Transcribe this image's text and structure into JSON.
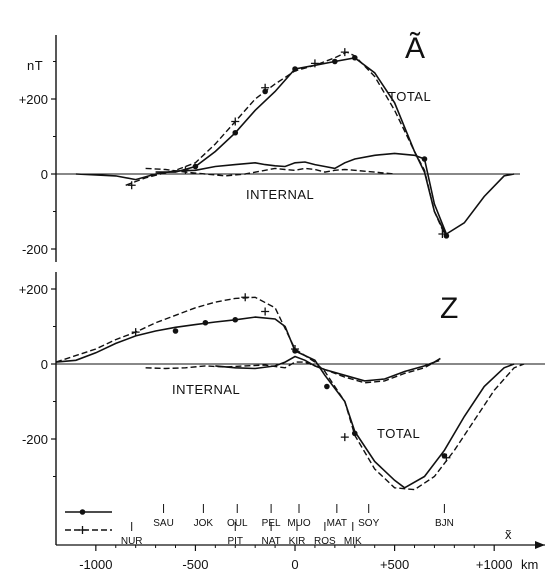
{
  "chart_data": [
    {
      "type": "line",
      "panel_label": "Ã",
      "ylabel": "nT",
      "yticks": [
        "+200",
        "0",
        "-200"
      ],
      "ytick_values": [
        200,
        0,
        -200
      ],
      "ylim": [
        -220,
        360
      ],
      "xlim": [
        -1200,
        1230
      ],
      "annotations": [
        "TOTAL",
        "INTERNAL"
      ],
      "series": [
        {
          "style": "solid-dots",
          "line": "solid",
          "marker": "dot",
          "points": [
            [
              -700,
              5
            ],
            [
              -600,
              5
            ],
            [
              -500,
              20
            ],
            [
              -400,
              60
            ],
            [
              -300,
              110
            ],
            [
              -200,
              170
            ],
            [
              -100,
              220
            ],
            [
              0,
              280
            ],
            [
              100,
              290
            ],
            [
              200,
              300
            ],
            [
              300,
              310
            ],
            [
              400,
              270
            ],
            [
              500,
              190
            ],
            [
              600,
              60
            ],
            [
              650,
              5
            ],
            [
              700,
              -100
            ],
            [
              760,
              -165
            ]
          ],
          "markers": [
            [
              -500,
              20
            ],
            [
              -300,
              110
            ],
            [
              -150,
              220
            ],
            [
              0,
              280
            ],
            [
              200,
              300
            ],
            [
              300,
              310
            ],
            [
              650,
              40
            ],
            [
              760,
              -165
            ]
          ]
        },
        {
          "style": "dashed-cross",
          "line": "dashed",
          "marker": "plus",
          "points": [
            [
              -850,
              -30
            ],
            [
              -750,
              -10
            ],
            [
              -600,
              10
            ],
            [
              -500,
              30
            ],
            [
              -400,
              80
            ],
            [
              -300,
              140
            ],
            [
              -200,
              200
            ],
            [
              -100,
              240
            ],
            [
              0,
              275
            ],
            [
              100,
              290
            ],
            [
              200,
              310
            ],
            [
              260,
              325
            ],
            [
              300,
              315
            ],
            [
              400,
              260
            ],
            [
              500,
              170
            ],
            [
              600,
              60
            ],
            [
              650,
              10
            ],
            [
              700,
              -100
            ],
            [
              750,
              -160
            ]
          ],
          "markers": [
            [
              -820,
              -30
            ],
            [
              -550,
              10
            ],
            [
              -300,
              140
            ],
            [
              -150,
              230
            ],
            [
              100,
              295
            ],
            [
              250,
              325
            ],
            [
              740,
              -160
            ]
          ]
        },
        {
          "style": "solid-dots",
          "line": "solid",
          "marker": "none",
          "points": [
            [
              -1100,
              0
            ],
            [
              -900,
              -5
            ],
            [
              -800,
              -15
            ],
            [
              -700,
              0
            ],
            [
              -600,
              8
            ],
            [
              -500,
              10
            ],
            [
              -400,
              20
            ],
            [
              -300,
              25
            ],
            [
              -200,
              30
            ],
            [
              -150,
              25
            ],
            [
              -100,
              22
            ],
            [
              -50,
              20
            ],
            [
              0,
              30
            ],
            [
              50,
              32
            ],
            [
              100,
              25
            ],
            [
              150,
              20
            ],
            [
              200,
              15
            ],
            [
              250,
              30
            ],
            [
              300,
              40
            ],
            [
              400,
              50
            ],
            [
              500,
              55
            ],
            [
              600,
              50
            ],
            [
              650,
              40
            ],
            [
              700,
              -80
            ],
            [
              760,
              -160
            ],
            [
              850,
              -130
            ],
            [
              950,
              -60
            ],
            [
              1050,
              -5
            ],
            [
              1100,
              0
            ]
          ]
        },
        {
          "style": "dashed-cross",
          "line": "dashed",
          "marker": "none",
          "points": [
            [
              -750,
              15
            ],
            [
              -650,
              12
            ],
            [
              -550,
              5
            ],
            [
              -450,
              0
            ],
            [
              -350,
              -5
            ],
            [
              -250,
              0
            ],
            [
              -150,
              10
            ],
            [
              -100,
              15
            ],
            [
              -50,
              12
            ],
            [
              0,
              10
            ],
            [
              50,
              15
            ],
            [
              100,
              12
            ],
            [
              150,
              5
            ],
            [
              200,
              10
            ],
            [
              250,
              12
            ],
            [
              300,
              10
            ],
            [
              400,
              5
            ],
            [
              500,
              0
            ]
          ]
        }
      ]
    },
    {
      "type": "line",
      "panel_label": "Z",
      "ylabel": "",
      "yticks": [
        "+200",
        "0",
        "-200"
      ],
      "ytick_values": [
        200,
        0,
        -200
      ],
      "ylim": [
        -370,
        240
      ],
      "xlim": [
        -1200,
        1230
      ],
      "xticks": [
        "-1000",
        "-500",
        "0",
        "+500",
        "+1000"
      ],
      "xtick_values": [
        -1000,
        -500,
        0,
        500,
        1000
      ],
      "xunit": "km",
      "xaxis_symbol": "x̃",
      "annotations": [
        "INTERNAL",
        "TOTAL"
      ],
      "series": [
        {
          "style": "solid-dots",
          "line": "solid",
          "marker": "dot",
          "points": [
            [
              -1200,
              5
            ],
            [
              -1100,
              10
            ],
            [
              -1000,
              30
            ],
            [
              -900,
              55
            ],
            [
              -800,
              75
            ],
            [
              -700,
              88
            ],
            [
              -600,
              98
            ],
            [
              -500,
              105
            ],
            [
              -400,
              112
            ],
            [
              -300,
              118
            ],
            [
              -200,
              125
            ],
            [
              -100,
              120
            ],
            [
              -50,
              100
            ],
            [
              0,
              35
            ],
            [
              100,
              10
            ],
            [
              150,
              -30
            ],
            [
              250,
              -100
            ],
            [
              300,
              -180
            ],
            [
              400,
              -260
            ],
            [
              500,
              -310
            ],
            [
              550,
              -330
            ],
            [
              650,
              -300
            ],
            [
              750,
              -230
            ],
            [
              850,
              -140
            ],
            [
              950,
              -60
            ],
            [
              1050,
              -10
            ],
            [
              1100,
              0
            ]
          ],
          "markers": [
            [
              -600,
              88
            ],
            [
              -450,
              110
            ],
            [
              -300,
              118
            ],
            [
              0,
              35
            ],
            [
              160,
              -60
            ],
            [
              300,
              -185
            ],
            [
              750,
              -245
            ]
          ]
        },
        {
          "style": "dashed-cross",
          "line": "dashed",
          "marker": "plus",
          "points": [
            [
              -1200,
              5
            ],
            [
              -1000,
              40
            ],
            [
              -900,
              65
            ],
            [
              -800,
              85
            ],
            [
              -700,
              110
            ],
            [
              -600,
              130
            ],
            [
              -500,
              150
            ],
            [
              -400,
              165
            ],
            [
              -300,
              175
            ],
            [
              -200,
              178
            ],
            [
              -100,
              150
            ],
            [
              0,
              40
            ],
            [
              100,
              5
            ],
            [
              150,
              -20
            ],
            [
              250,
              -100
            ],
            [
              300,
              -190
            ],
            [
              400,
              -280
            ],
            [
              500,
              -330
            ],
            [
              600,
              -335
            ],
            [
              700,
              -300
            ],
            [
              800,
              -230
            ],
            [
              900,
              -150
            ],
            [
              1000,
              -70
            ],
            [
              1100,
              -10
            ],
            [
              1150,
              0
            ]
          ],
          "markers": [
            [
              -800,
              85
            ],
            [
              -250,
              178
            ],
            [
              -150,
              140
            ],
            [
              0,
              40
            ],
            [
              250,
              -195
            ],
            [
              760,
              -250
            ]
          ]
        },
        {
          "style": "solid-dots",
          "line": "solid",
          "marker": "none",
          "points": [
            [
              -400,
              -5
            ],
            [
              -300,
              -10
            ],
            [
              -200,
              -12
            ],
            [
              -100,
              -5
            ],
            [
              -50,
              5
            ],
            [
              0,
              20
            ],
            [
              50,
              10
            ],
            [
              100,
              -5
            ],
            [
              150,
              -15
            ],
            [
              250,
              -30
            ],
            [
              350,
              -45
            ],
            [
              450,
              -40
            ],
            [
              550,
              -20
            ],
            [
              650,
              -5
            ],
            [
              700,
              5
            ],
            [
              730,
              15
            ]
          ]
        },
        {
          "style": "dashed-cross",
          "line": "dashed",
          "marker": "none",
          "points": [
            [
              -750,
              -10
            ],
            [
              -650,
              -12
            ],
            [
              -550,
              -10
            ],
            [
              -450,
              -5
            ],
            [
              -350,
              -8
            ],
            [
              -250,
              -5
            ],
            [
              -150,
              -3
            ],
            [
              -50,
              -10
            ],
            [
              0,
              5
            ],
            [
              50,
              5
            ],
            [
              100,
              -5
            ],
            [
              150,
              -15
            ],
            [
              250,
              -35
            ],
            [
              350,
              -50
            ],
            [
              450,
              -45
            ],
            [
              550,
              -25
            ],
            [
              650,
              -10
            ],
            [
              700,
              5
            ],
            [
              730,
              10
            ]
          ]
        }
      ]
    }
  ],
  "legend": [
    {
      "style": "solid-dots"
    },
    {
      "style": "dashed-cross"
    }
  ],
  "stations": [
    {
      "name": "NUR",
      "x": -820,
      "row": "lower"
    },
    {
      "name": "SAU",
      "x": -660,
      "row": "upper"
    },
    {
      "name": "JOK",
      "x": -460,
      "row": "upper"
    },
    {
      "name": "OUL",
      "x": -290,
      "row": "upper"
    },
    {
      "name": "PIT",
      "x": -300,
      "row": "lower"
    },
    {
      "name": "PEL",
      "x": -120,
      "row": "upper"
    },
    {
      "name": "NAT",
      "x": -120,
      "row": "lower"
    },
    {
      "name": "MUO",
      "x": 20,
      "row": "upper"
    },
    {
      "name": "KIR",
      "x": 10,
      "row": "lower"
    },
    {
      "name": "ROS",
      "x": 150,
      "row": "lower"
    },
    {
      "name": "MAT",
      "x": 210,
      "row": "upper"
    },
    {
      "name": "MIK",
      "x": 290,
      "row": "lower"
    },
    {
      "name": "SOY",
      "x": 370,
      "row": "upper"
    },
    {
      "name": "BJN",
      "x": 750,
      "row": "upper"
    }
  ]
}
